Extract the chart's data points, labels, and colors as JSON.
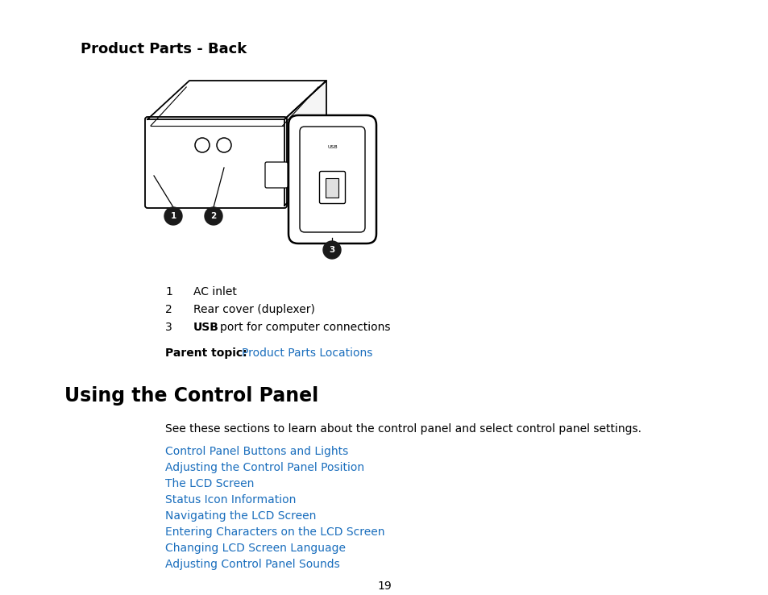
{
  "bg_color": "#ffffff",
  "page_width": 9.54,
  "page_height": 7.38,
  "dpi": 100,
  "title1": "Product Parts - Back",
  "section2_title": "Using the Control Panel",
  "section2_desc": "See these sections to learn about the control panel and select control panel settings.",
  "links": [
    "Control Panel Buttons and Lights",
    "Adjusting the Control Panel Position",
    "The LCD Screen",
    "Status Icon Information",
    "Navigating the LCD Screen",
    "Entering Characters on the LCD Screen",
    "Changing LCD Screen Language",
    "Adjusting Control Panel Sounds"
  ],
  "link_color": "#1a6ebd",
  "black": "#000000",
  "parent_label": "Parent topic: ",
  "parent_link": "Product Parts Locations",
  "page_number": "19"
}
